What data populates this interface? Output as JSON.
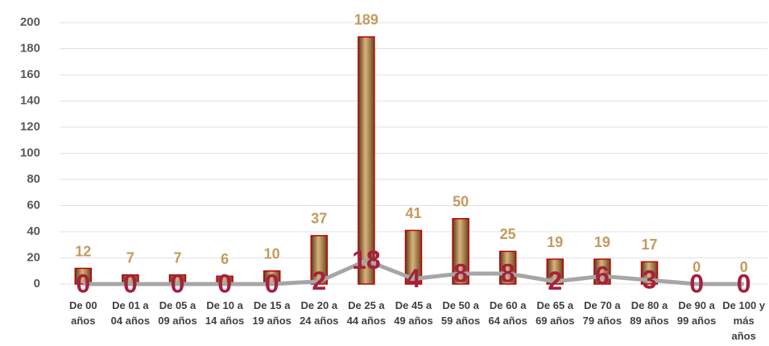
{
  "chart_data": {
    "type": "bar",
    "categories": [
      "De 00 años",
      "De 01 a 04 años",
      "De 05 a 09 años",
      "De 10 a 14 años",
      "De 15 a 19 años",
      "De 20 a 24 años",
      "De 25 a 44 años",
      "De 45 a 49 años",
      "De 50 a 59 años",
      "De 60 a 64 años",
      "De 65 a 69 años",
      "De 70 a 79 años",
      "De 80 a 89 años",
      "De 90 a 99 años",
      "De 100 y más años"
    ],
    "series": [
      {
        "type": "bar",
        "color": "#8b6a3a",
        "values": [
          12,
          7,
          7,
          6,
          10,
          37,
          189,
          41,
          50,
          25,
          19,
          19,
          17,
          0,
          0
        ]
      },
      {
        "type": "line",
        "color": "#a6a6a6",
        "values": [
          0,
          0,
          0,
          0,
          0,
          2,
          18,
          4,
          8,
          8,
          2,
          6,
          3,
          0,
          0
        ]
      }
    ],
    "ylim": [
      0,
      200
    ],
    "yticks": [
      0,
      20,
      40,
      60,
      80,
      100,
      120,
      140,
      160,
      180,
      200
    ],
    "grid": true
  }
}
